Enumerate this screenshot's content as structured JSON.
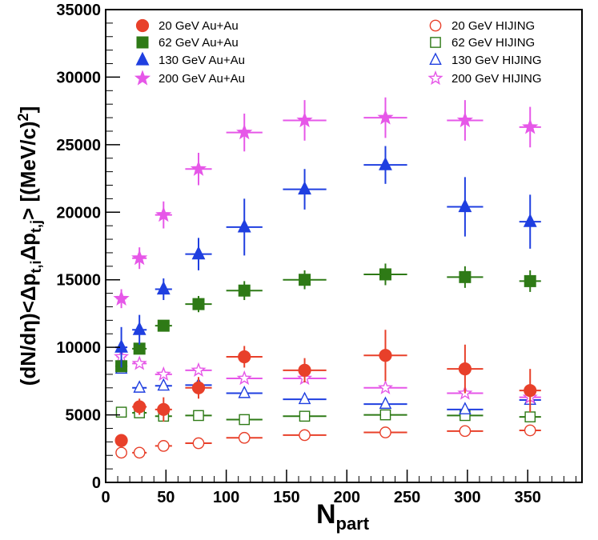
{
  "chart_data": {
    "type": "scatter",
    "title": "",
    "xlabel_main": "N",
    "xlabel_sub": "part",
    "ylabel_parts": [
      {
        "text": "(dN/dη)<Δp",
        "shift": "none"
      },
      {
        "text": "t,i",
        "shift": "sub"
      },
      {
        "text": "Δp",
        "shift": "none"
      },
      {
        "text": "t,j",
        "shift": "sub"
      },
      {
        "text": "> [(MeV/c)",
        "shift": "none"
      },
      {
        "text": "2",
        "shift": "super"
      },
      {
        "text": "]",
        "shift": "none"
      }
    ],
    "xlim": [
      0,
      395
    ],
    "ylim": [
      0,
      35000
    ],
    "xticks": [
      0,
      50,
      100,
      150,
      200,
      250,
      300,
      350
    ],
    "yticks": [
      0,
      5000,
      10000,
      15000,
      20000,
      25000,
      30000,
      35000
    ],
    "grid": false,
    "legend": "top",
    "series": [
      {
        "name": "20 GeV Au+Au",
        "color": "#e8402a",
        "marker": "circle",
        "filled": true,
        "points": [
          {
            "x": 13,
            "y": 3100,
            "xerr": 0,
            "yerr": 450
          },
          {
            "x": 28,
            "y": 5600,
            "xerr": 6,
            "yerr": 600
          },
          {
            "x": 48,
            "y": 5400,
            "xerr": 7,
            "yerr": 900
          },
          {
            "x": 77,
            "y": 7000,
            "xerr": 11,
            "yerr": 800
          },
          {
            "x": 115,
            "y": 9300,
            "xerr": 15,
            "yerr": 800
          },
          {
            "x": 165,
            "y": 8300,
            "xerr": 18,
            "yerr": 900
          },
          {
            "x": 232,
            "y": 9400,
            "xerr": 18,
            "yerr": 1900
          },
          {
            "x": 298,
            "y": 8400,
            "xerr": 15,
            "yerr": 1800
          },
          {
            "x": 352,
            "y": 6800,
            "xerr": 9,
            "yerr": 1600
          }
        ]
      },
      {
        "name": "62 GeV Au+Au",
        "color": "#2e7a16",
        "marker": "square",
        "filled": true,
        "points": [
          {
            "x": 13,
            "y": 8600,
            "xerr": 5,
            "yerr": 400
          },
          {
            "x": 28,
            "y": 9900,
            "xerr": 6,
            "yerr": 400
          },
          {
            "x": 48,
            "y": 11600,
            "xerr": 7,
            "yerr": 400
          },
          {
            "x": 77,
            "y": 13200,
            "xerr": 11,
            "yerr": 600
          },
          {
            "x": 115,
            "y": 14200,
            "xerr": 15,
            "yerr": 700
          },
          {
            "x": 165,
            "y": 15000,
            "xerr": 18,
            "yerr": 700
          },
          {
            "x": 232,
            "y": 15400,
            "xerr": 18,
            "yerr": 800
          },
          {
            "x": 298,
            "y": 15200,
            "xerr": 15,
            "yerr": 800
          },
          {
            "x": 352,
            "y": 14900,
            "xerr": 9,
            "yerr": 800
          }
        ]
      },
      {
        "name": "130 GeV Au+Au",
        "color": "#1f3fe0",
        "marker": "triangle",
        "filled": true,
        "points": [
          {
            "x": 13,
            "y": 10000,
            "xerr": 5,
            "yerr": 1500
          },
          {
            "x": 28,
            "y": 11300,
            "xerr": 6,
            "yerr": 1100
          },
          {
            "x": 48,
            "y": 14300,
            "xerr": 7,
            "yerr": 800
          },
          {
            "x": 77,
            "y": 16900,
            "xerr": 11,
            "yerr": 1200
          },
          {
            "x": 115,
            "y": 18900,
            "xerr": 15,
            "yerr": 2100
          },
          {
            "x": 165,
            "y": 21700,
            "xerr": 18,
            "yerr": 1500
          },
          {
            "x": 232,
            "y": 23500,
            "xerr": 18,
            "yerr": 1400
          },
          {
            "x": 298,
            "y": 20400,
            "xerr": 15,
            "yerr": 2200
          },
          {
            "x": 352,
            "y": 19300,
            "xerr": 9,
            "yerr": 2000
          }
        ]
      },
      {
        "name": "200 GeV Au+Au",
        "color": "#e657e8",
        "marker": "star",
        "filled": true,
        "points": [
          {
            "x": 13,
            "y": 13600,
            "xerr": 4,
            "yerr": 700
          },
          {
            "x": 28,
            "y": 16600,
            "xerr": 6,
            "yerr": 800
          },
          {
            "x": 48,
            "y": 19800,
            "xerr": 7,
            "yerr": 1000
          },
          {
            "x": 77,
            "y": 23200,
            "xerr": 11,
            "yerr": 1200
          },
          {
            "x": 115,
            "y": 25900,
            "xerr": 15,
            "yerr": 1400
          },
          {
            "x": 165,
            "y": 26800,
            "xerr": 18,
            "yerr": 1500
          },
          {
            "x": 232,
            "y": 27000,
            "xerr": 18,
            "yerr": 1500
          },
          {
            "x": 298,
            "y": 26800,
            "xerr": 15,
            "yerr": 1500
          },
          {
            "x": 352,
            "y": 26300,
            "xerr": 9,
            "yerr": 1500
          }
        ]
      },
      {
        "name": "20 GeV HIJING",
        "color": "#e8402a",
        "marker": "circle",
        "filled": false,
        "points": [
          {
            "x": 13,
            "y": 2200,
            "xerr": 4,
            "yerr": 0
          },
          {
            "x": 28,
            "y": 2200,
            "xerr": 6,
            "yerr": 0
          },
          {
            "x": 48,
            "y": 2700,
            "xerr": 7,
            "yerr": 0
          },
          {
            "x": 77,
            "y": 2900,
            "xerr": 11,
            "yerr": 0
          },
          {
            "x": 115,
            "y": 3300,
            "xerr": 15,
            "yerr": 0
          },
          {
            "x": 165,
            "y": 3500,
            "xerr": 18,
            "yerr": 0
          },
          {
            "x": 232,
            "y": 3700,
            "xerr": 18,
            "yerr": 0
          },
          {
            "x": 298,
            "y": 3800,
            "xerr": 15,
            "yerr": 0
          },
          {
            "x": 352,
            "y": 3850,
            "xerr": 9,
            "yerr": 0
          }
        ]
      },
      {
        "name": "62 GeV HIJING",
        "color": "#2e7a16",
        "marker": "square",
        "filled": false,
        "points": [
          {
            "x": 13,
            "y": 5200,
            "xerr": 4,
            "yerr": 0
          },
          {
            "x": 28,
            "y": 5150,
            "xerr": 6,
            "yerr": 0
          },
          {
            "x": 48,
            "y": 4900,
            "xerr": 7,
            "yerr": 0
          },
          {
            "x": 77,
            "y": 4950,
            "xerr": 11,
            "yerr": 0
          },
          {
            "x": 115,
            "y": 4650,
            "xerr": 15,
            "yerr": 0
          },
          {
            "x": 165,
            "y": 4900,
            "xerr": 18,
            "yerr": 0
          },
          {
            "x": 232,
            "y": 5000,
            "xerr": 18,
            "yerr": 0
          },
          {
            "x": 298,
            "y": 4950,
            "xerr": 15,
            "yerr": 0
          },
          {
            "x": 352,
            "y": 4850,
            "xerr": 9,
            "yerr": 0
          }
        ]
      },
      {
        "name": "130 GeV HIJING",
        "color": "#1f3fe0",
        "marker": "triangle",
        "filled": false,
        "points": [
          {
            "x": 13,
            "y": 8400,
            "xerr": 4,
            "yerr": 0
          },
          {
            "x": 28,
            "y": 7000,
            "xerr": 6,
            "yerr": 0
          },
          {
            "x": 48,
            "y": 7150,
            "xerr": 7,
            "yerr": 0
          },
          {
            "x": 77,
            "y": 7200,
            "xerr": 11,
            "yerr": 0
          },
          {
            "x": 115,
            "y": 6600,
            "xerr": 15,
            "yerr": 0
          },
          {
            "x": 165,
            "y": 6150,
            "xerr": 18,
            "yerr": 0
          },
          {
            "x": 232,
            "y": 5800,
            "xerr": 18,
            "yerr": 0
          },
          {
            "x": 298,
            "y": 5400,
            "xerr": 15,
            "yerr": 0
          },
          {
            "x": 352,
            "y": 6100,
            "xerr": 9,
            "yerr": 0
          }
        ]
      },
      {
        "name": "200 GeV HIJING",
        "color": "#e657e8",
        "marker": "star",
        "filled": false,
        "points": [
          {
            "x": 13,
            "y": 9300,
            "xerr": 4,
            "yerr": 0
          },
          {
            "x": 28,
            "y": 8800,
            "xerr": 6,
            "yerr": 0
          },
          {
            "x": 48,
            "y": 8000,
            "xerr": 7,
            "yerr": 0
          },
          {
            "x": 77,
            "y": 8300,
            "xerr": 11,
            "yerr": 0
          },
          {
            "x": 115,
            "y": 7700,
            "xerr": 15,
            "yerr": 0
          },
          {
            "x": 165,
            "y": 7700,
            "xerr": 18,
            "yerr": 0
          },
          {
            "x": 232,
            "y": 7000,
            "xerr": 18,
            "yerr": 0
          },
          {
            "x": 298,
            "y": 6600,
            "xerr": 15,
            "yerr": 0
          },
          {
            "x": 352,
            "y": 6300,
            "xerr": 9,
            "yerr": 0
          }
        ]
      }
    ]
  }
}
